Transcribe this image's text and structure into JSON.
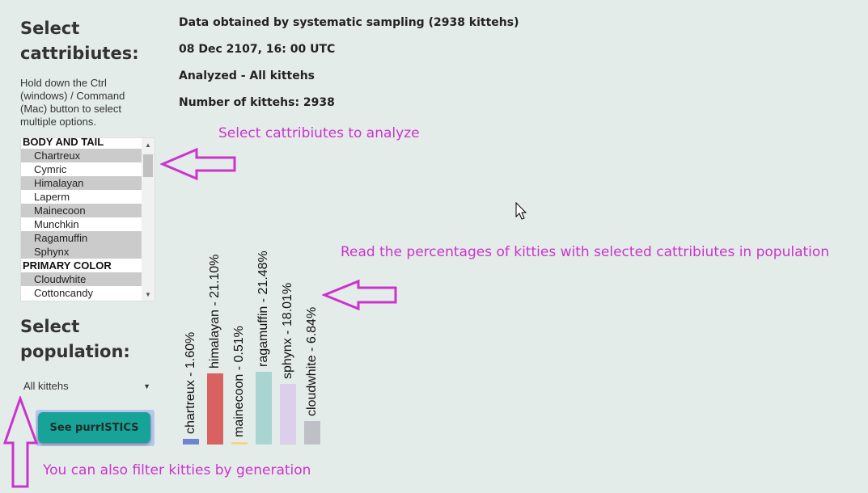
{
  "sidebar": {
    "attributes_heading": "Select cattribiutes:",
    "help_text": "Hold down the Ctrl (windows) / Command (Mac) button to select multiple options.",
    "list": [
      {
        "type": "group",
        "label": "BODY AND TAIL"
      },
      {
        "type": "option",
        "label": "Chartreux",
        "selected": true
      },
      {
        "type": "option",
        "label": "Cymric",
        "selected": false
      },
      {
        "type": "option",
        "label": "Himalayan",
        "selected": true
      },
      {
        "type": "option",
        "label": "Laperm",
        "selected": false
      },
      {
        "type": "option",
        "label": "Mainecoon",
        "selected": true
      },
      {
        "type": "option",
        "label": "Munchkin",
        "selected": false
      },
      {
        "type": "option",
        "label": "Ragamuffin",
        "selected": true
      },
      {
        "type": "option",
        "label": "Sphynx",
        "selected": true
      },
      {
        "type": "group",
        "label": "PRIMARY COLOR"
      },
      {
        "type": "option",
        "label": "Cloudwhite",
        "selected": true
      },
      {
        "type": "option",
        "label": "Cottoncandy",
        "selected": false
      }
    ],
    "population_heading": "Select population:",
    "population_value": "All kittehs",
    "submit_label": "See purrISTICS"
  },
  "info": {
    "line1": "Data obtained by systematic sampling (2938 kittehs)",
    "line2": "08 Dec 2107, 16: 00 UTC",
    "line3": "Analyzed - All kittehs",
    "line4": "Number of kittehs: 2938"
  },
  "annotations": {
    "select": "Select cattribiutes to analyze",
    "read": "Read the percentages of kitties with selected cattribiutes in population",
    "filter": "You can also filter kitties by generation"
  },
  "chart_data": {
    "type": "bar",
    "categories": [
      "chartreux",
      "himalayan",
      "mainecoon",
      "ragamuffin",
      "sphynx",
      "cloudwhite"
    ],
    "values": [
      1.6,
      21.1,
      0.51,
      21.48,
      18.01,
      6.84
    ],
    "labels": [
      "chartreux - 1.60%",
      "himalayan - 21.10%",
      "mainecoon - 0.51%",
      "ragamuffin - 21.48%",
      "sphynx - 18.01%",
      "cloudwhite - 6.84%"
    ],
    "colors": [
      "#6b86cf",
      "#d9615f",
      "#f4d58d",
      "#a8d5d1",
      "#dccfec",
      "#bfc0c6"
    ],
    "ylim": [
      0,
      25
    ]
  }
}
